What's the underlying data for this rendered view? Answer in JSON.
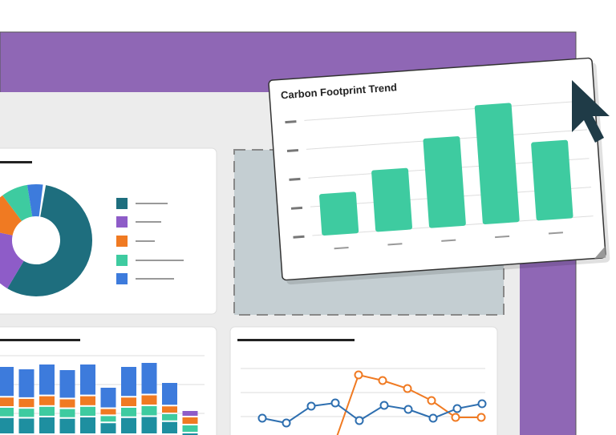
{
  "card": {
    "title": "Carbon Footprint Trend"
  }
}
